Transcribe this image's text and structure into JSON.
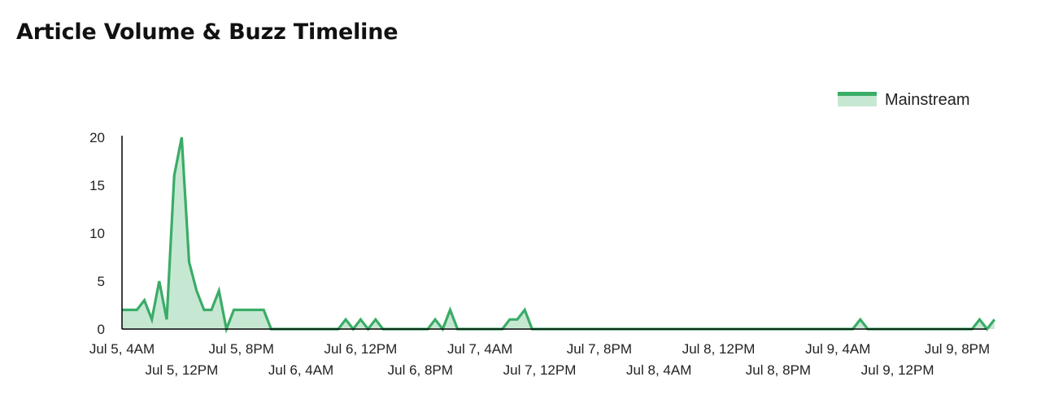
{
  "title": "Article Volume & Buzz Timeline",
  "legend": {
    "label": "Mainstream"
  },
  "colors": {
    "line": "#3aac67",
    "fill": "#c6e8d2",
    "axis": "#000000"
  },
  "chart_data": {
    "type": "area",
    "title": "Article Volume & Buzz Timeline",
    "xlabel": "",
    "ylabel": "",
    "ylim": [
      0,
      20
    ],
    "yticks": [
      0,
      5,
      10,
      15,
      20
    ],
    "grid": false,
    "legend_position": "top-right",
    "xlim": [
      "2024-07-05 04:00",
      "2024-07-10 00:00"
    ],
    "xtick_labels": [
      {
        "t": "2024-07-05 04:00",
        "label": "Jul 5, 4AM"
      },
      {
        "t": "2024-07-05 12:00",
        "label": "Jul 5, 12PM"
      },
      {
        "t": "2024-07-05 20:00",
        "label": "Jul 5, 8PM"
      },
      {
        "t": "2024-07-06 04:00",
        "label": "Jul 6, 4AM"
      },
      {
        "t": "2024-07-06 12:00",
        "label": "Jul 6, 12PM"
      },
      {
        "t": "2024-07-06 20:00",
        "label": "Jul 6, 8PM"
      },
      {
        "t": "2024-07-07 04:00",
        "label": "Jul 7, 4AM"
      },
      {
        "t": "2024-07-07 12:00",
        "label": "Jul 7, 12PM"
      },
      {
        "t": "2024-07-07 20:00",
        "label": "Jul 7, 8PM"
      },
      {
        "t": "2024-07-08 04:00",
        "label": "Jul 8, 4AM"
      },
      {
        "t": "2024-07-08 12:00",
        "label": "Jul 8, 12PM"
      },
      {
        "t": "2024-07-08 20:00",
        "label": "Jul 8, 8PM"
      },
      {
        "t": "2024-07-09 04:00",
        "label": "Jul 9, 4AM"
      },
      {
        "t": "2024-07-09 12:00",
        "label": "Jul 9, 12PM"
      },
      {
        "t": "2024-07-09 20:00",
        "label": "Jul 9, 8PM"
      }
    ],
    "series": [
      {
        "name": "Mainstream",
        "points": [
          [
            "2024-07-05 04:00",
            2
          ],
          [
            "2024-07-05 05:00",
            2
          ],
          [
            "2024-07-05 06:00",
            2
          ],
          [
            "2024-07-05 07:00",
            3
          ],
          [
            "2024-07-05 08:00",
            1
          ],
          [
            "2024-07-05 09:00",
            5
          ],
          [
            "2024-07-05 10:00",
            1
          ],
          [
            "2024-07-05 11:00",
            16
          ],
          [
            "2024-07-05 12:00",
            20
          ],
          [
            "2024-07-05 13:00",
            7
          ],
          [
            "2024-07-05 14:00",
            4
          ],
          [
            "2024-07-05 15:00",
            2
          ],
          [
            "2024-07-05 16:00",
            2
          ],
          [
            "2024-07-05 17:00",
            4
          ],
          [
            "2024-07-05 18:00",
            0
          ],
          [
            "2024-07-05 19:00",
            2
          ],
          [
            "2024-07-05 20:00",
            2
          ],
          [
            "2024-07-05 21:00",
            2
          ],
          [
            "2024-07-05 22:00",
            2
          ],
          [
            "2024-07-05 23:00",
            2
          ],
          [
            "2024-07-06 00:00",
            0
          ],
          [
            "2024-07-06 09:00",
            0
          ],
          [
            "2024-07-06 10:00",
            1
          ],
          [
            "2024-07-06 11:00",
            0
          ],
          [
            "2024-07-06 12:00",
            1
          ],
          [
            "2024-07-06 13:00",
            0
          ],
          [
            "2024-07-06 14:00",
            1
          ],
          [
            "2024-07-06 15:00",
            0
          ],
          [
            "2024-07-06 21:00",
            0
          ],
          [
            "2024-07-06 22:00",
            1
          ],
          [
            "2024-07-06 23:00",
            0
          ],
          [
            "2024-07-07 00:00",
            2
          ],
          [
            "2024-07-07 01:00",
            0
          ],
          [
            "2024-07-07 07:00",
            0
          ],
          [
            "2024-07-07 08:00",
            1
          ],
          [
            "2024-07-07 09:00",
            1
          ],
          [
            "2024-07-07 10:00",
            2
          ],
          [
            "2024-07-07 11:00",
            0
          ],
          [
            "2024-07-09 06:00",
            0
          ],
          [
            "2024-07-09 07:00",
            1
          ],
          [
            "2024-07-09 08:00",
            0
          ],
          [
            "2024-07-09 22:00",
            0
          ],
          [
            "2024-07-09 23:00",
            1
          ],
          [
            "2024-07-10 00:00",
            0
          ],
          [
            "2024-07-10 01:00",
            1
          ]
        ]
      }
    ]
  }
}
